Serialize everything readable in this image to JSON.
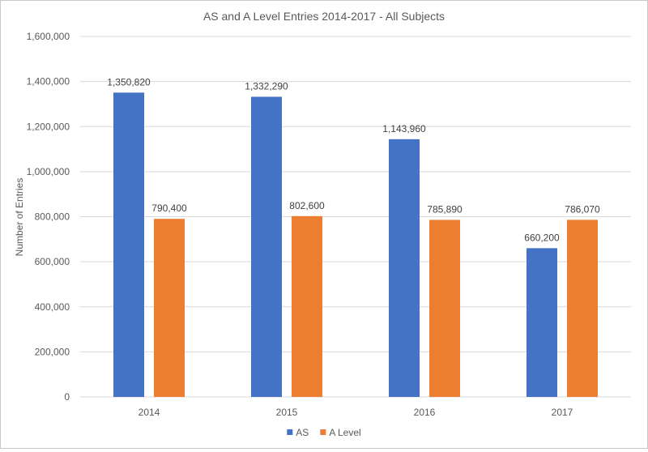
{
  "chart_data": {
    "type": "bar",
    "title": "AS and A Level Entries 2014-2017 - All Subjects",
    "xlabel": "",
    "ylabel": "Number of Entries",
    "categories": [
      "2014",
      "2015",
      "2016",
      "2017"
    ],
    "series": [
      {
        "name": "AS",
        "color": "#4472c4",
        "values": [
          1350820,
          1332290,
          1143960,
          660200
        ]
      },
      {
        "name": "A Level",
        "color": "#ed7d31",
        "values": [
          790400,
          802600,
          785890,
          786070
        ]
      }
    ],
    "ylim": [
      0,
      1600000
    ],
    "yticks": [
      0,
      200000,
      400000,
      600000,
      800000,
      1000000,
      1200000,
      1400000,
      1600000
    ],
    "ytick_labels": [
      "0",
      "200,000",
      "400,000",
      "600,000",
      "800,000",
      "1,000,000",
      "1,200,000",
      "1,400,000",
      "1,600,000"
    ],
    "data_labels": [
      [
        "1,350,820",
        "1,332,290",
        "1,143,960",
        "660,200"
      ],
      [
        "790,400",
        "802,600",
        "785,890",
        "786,070"
      ]
    ],
    "grid": true,
    "legend": "bottom"
  }
}
